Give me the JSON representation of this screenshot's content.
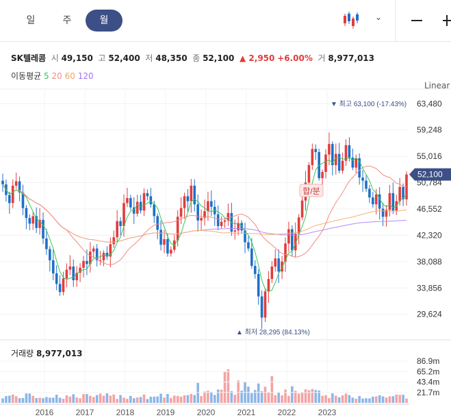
{
  "tabs": {
    "day": "일",
    "week": "주",
    "month": "월"
  },
  "header": {
    "name": "SK텔레콤",
    "open_label": "시",
    "open": "49,150",
    "high_label": "고",
    "high": "52,400",
    "low_label": "저",
    "low": "48,350",
    "close_label": "종",
    "close": "52,100",
    "change": "▲ 2,950",
    "change_pct": "+6.00%",
    "volume_label": "거",
    "volume": "8,977,013"
  },
  "ma_legend": {
    "label": "이동평균",
    "ma5": "5",
    "ma20": "20",
    "ma60": "60",
    "ma120": "120"
  },
  "scale_label": "Linear",
  "colors": {
    "up": "#e23c3c",
    "down": "#1f6fc8",
    "ma5": "#34c759",
    "ma20": "#f28b82",
    "ma60": "#f5b06e",
    "ma120": "#b388ff",
    "accent": "#3c4f86"
  },
  "price_axis": {
    "ticks": [
      "63,480",
      "59,248",
      "55,016",
      "50,784",
      "46,552",
      "42,320",
      "38,088",
      "33,856",
      "29,624"
    ]
  },
  "current_price_tag": "52,100",
  "high_annotation": "▼ 최고 63,100 (-17.43%)",
  "low_annotation": "▲ 최저 28,295 (84.13%)",
  "event_badge": "합/분",
  "volume_header": {
    "label": "거래량",
    "value": "8,977,013"
  },
  "volume_axis": {
    "ticks": [
      "86.9m",
      "65.2m",
      "43.4m",
      "21.7m"
    ]
  },
  "x_axis": {
    "ticks": [
      "2016",
      "2017",
      "2018",
      "2019",
      "2020",
      "2021",
      "2022",
      "2023"
    ]
  },
  "chart_data": {
    "type": "candlestick",
    "interval": "monthly",
    "y_range": [
      27500,
      64500
    ],
    "volume_range_m": [
      0,
      90
    ],
    "close_series": [
      50500,
      48800,
      47500,
      50300,
      51000,
      49200,
      46700,
      45100,
      44200,
      45400,
      43500,
      44800,
      41800,
      40100,
      38300,
      36200,
      34500,
      33200,
      35400,
      36800,
      37300,
      35100,
      36300,
      37100,
      38200,
      37700,
      39700,
      40200,
      38300,
      38300,
      39500,
      38900,
      40900,
      42000,
      44600,
      43800,
      47500,
      48300,
      46800,
      45800,
      47700,
      46300,
      49100,
      48600,
      47300,
      45400,
      43200,
      40800,
      41700,
      39400,
      40000,
      41500,
      45300,
      46700,
      48600,
      47800,
      50300,
      47300,
      44700,
      45100,
      46200,
      47800,
      46900,
      45700,
      43800,
      44500,
      44700,
      45900,
      42900,
      43100,
      44300,
      43100,
      41200,
      40200,
      37400,
      36100,
      32500,
      29100,
      33300,
      35300,
      37300,
      38600,
      36500,
      38100,
      41000,
      43300,
      39900,
      42600,
      45200,
      47900,
      50800,
      53600,
      56200,
      55700,
      51500,
      52500,
      55300,
      57000,
      53600,
      55400,
      52700,
      54300,
      56800,
      54800,
      53200,
      54700,
      51600,
      51100,
      49800,
      48400,
      47300,
      48900,
      46600,
      45300,
      46400,
      49100,
      46300,
      47800,
      50100,
      48100,
      52100
    ]
  }
}
